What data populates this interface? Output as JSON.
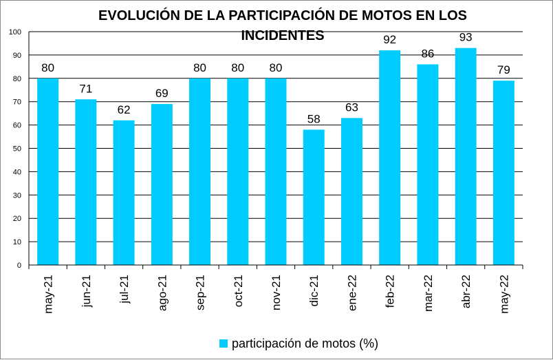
{
  "chart_data": {
    "type": "bar",
    "title": "EVOLUCIÓN DE LA PARTICIPACIÓN DE MOTOS EN LOS INCIDENTES",
    "categories": [
      "may-21",
      "jun-21",
      "jul-21",
      "ago-21",
      "sep-21",
      "oct-21",
      "nov-21",
      "dic-21",
      "ene-22",
      "feb-22",
      "mar-22",
      "abr-22",
      "may-22"
    ],
    "series": [
      {
        "name": "participación de motos (%)",
        "values": [
          80,
          71,
          62,
          69,
          80,
          80,
          80,
          58,
          63,
          92,
          86,
          93,
          79
        ]
      }
    ],
    "ylim": [
      0,
      100
    ],
    "yticks": [
      0,
      10,
      20,
      30,
      40,
      50,
      60,
      70,
      80,
      90,
      100
    ],
    "grid": true,
    "legend_position": "bottom",
    "colors": {
      "bar": "#00CCFF",
      "grid": "#000000",
      "text": "#000000"
    }
  }
}
